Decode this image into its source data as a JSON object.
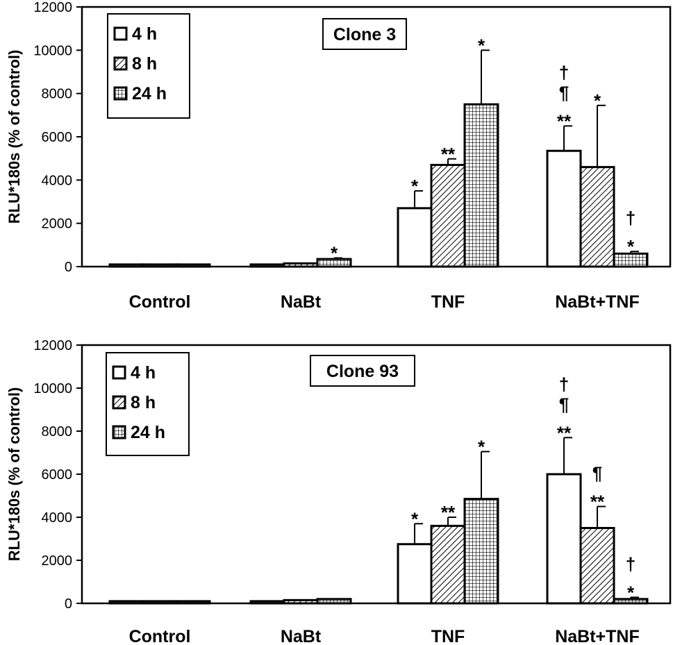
{
  "chart_data": [
    {
      "type": "bar",
      "title": "Clone 3",
      "ylabel": "RLU*180s (% of control)",
      "xlabel": "",
      "ylim": [
        0,
        12000
      ],
      "yticks": [
        "0",
        "2000",
        "4000",
        "6000",
        "8000",
        "10000",
        "12000"
      ],
      "categories": [
        "Control",
        "NaBt",
        "TNF",
        "NaBt+TNF"
      ],
      "legend_position": "top-left",
      "series": [
        {
          "name": "4 h",
          "pattern": "white",
          "values": [
            100,
            100,
            2700,
            5350
          ],
          "errors": [
            0,
            0,
            800,
            1150
          ]
        },
        {
          "name": "8 h",
          "pattern": "diagonal",
          "values": [
            100,
            150,
            4700,
            4600
          ],
          "errors": [
            0,
            0,
            280,
            2850
          ]
        },
        {
          "name": "24 h",
          "pattern": "grid",
          "values": [
            100,
            350,
            7500,
            600
          ],
          "errors": [
            0,
            50,
            2500,
            100
          ]
        }
      ],
      "annotations": [
        {
          "category": 1,
          "series": 2,
          "lines": [
            "*"
          ]
        },
        {
          "category": 2,
          "series": 0,
          "lines": [
            "*"
          ]
        },
        {
          "category": 2,
          "series": 1,
          "lines": [
            "**"
          ]
        },
        {
          "category": 2,
          "series": 2,
          "lines": [
            "*"
          ]
        },
        {
          "category": 3,
          "series": 0,
          "lines": [
            "†",
            "¶",
            "**"
          ]
        },
        {
          "category": 3,
          "series": 1,
          "lines": [
            "*"
          ]
        },
        {
          "category": 3,
          "series": 2,
          "lines": [
            "†",
            "*"
          ]
        }
      ]
    },
    {
      "type": "bar",
      "title": "Clone 93",
      "ylabel": "RLU*180s (% of control)",
      "xlabel": "",
      "ylim": [
        0,
        12000
      ],
      "yticks": [
        "0",
        "2000",
        "4000",
        "6000",
        "8000",
        "10000",
        "12000"
      ],
      "categories": [
        "Control",
        "NaBt",
        "TNF",
        "NaBt+TNF"
      ],
      "legend_position": "top-left",
      "series": [
        {
          "name": "4 h",
          "pattern": "white",
          "values": [
            100,
            100,
            2750,
            6000
          ],
          "errors": [
            0,
            0,
            950,
            1700
          ]
        },
        {
          "name": "8 h",
          "pattern": "diagonal",
          "values": [
            100,
            150,
            3600,
            3500
          ],
          "errors": [
            0,
            0,
            400,
            1000
          ]
        },
        {
          "name": "24 h",
          "pattern": "grid",
          "values": [
            100,
            200,
            4850,
            200
          ],
          "errors": [
            0,
            0,
            2200,
            80
          ]
        }
      ],
      "annotations": [
        {
          "category": 2,
          "series": 0,
          "lines": [
            "*"
          ]
        },
        {
          "category": 2,
          "series": 1,
          "lines": [
            "**"
          ]
        },
        {
          "category": 2,
          "series": 2,
          "lines": [
            "*"
          ]
        },
        {
          "category": 3,
          "series": 0,
          "lines": [
            "†",
            "¶",
            "**"
          ]
        },
        {
          "category": 3,
          "series": 1,
          "lines": [
            "¶",
            "**"
          ]
        },
        {
          "category": 3,
          "series": 2,
          "lines": [
            "†",
            "*"
          ]
        }
      ]
    }
  ]
}
